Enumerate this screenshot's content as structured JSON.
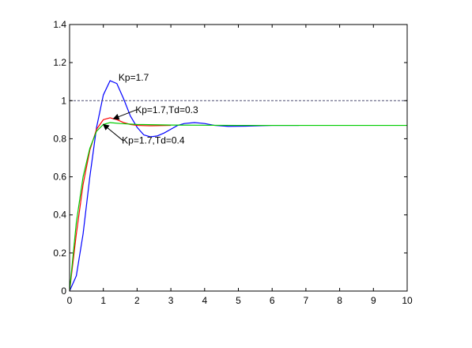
{
  "chart_data": {
    "type": "line",
    "title": "",
    "xlabel": "",
    "ylabel": "",
    "xlim": [
      0,
      10
    ],
    "ylim": [
      0,
      1.4
    ],
    "x_ticks": [
      "0",
      "1",
      "2",
      "3",
      "4",
      "5",
      "6",
      "7",
      "8",
      "9",
      "10"
    ],
    "y_ticks": [
      "0",
      "0.2",
      "0.4",
      "0.6",
      "0.8",
      "1",
      "1.2",
      "1.4"
    ],
    "grid": false,
    "legend": "none",
    "series": [
      {
        "color": "#0000ff",
        "points": [
          [
            0,
            0
          ],
          [
            0.2,
            0.08
          ],
          [
            0.4,
            0.3
          ],
          [
            0.6,
            0.6
          ],
          [
            0.8,
            0.86
          ],
          [
            1.0,
            1.03
          ],
          [
            1.2,
            1.105
          ],
          [
            1.4,
            1.09
          ],
          [
            1.6,
            1.01
          ],
          [
            1.8,
            0.92
          ],
          [
            2.0,
            0.86
          ],
          [
            2.2,
            0.82
          ],
          [
            2.4,
            0.81
          ],
          [
            2.6,
            0.815
          ],
          [
            2.8,
            0.83
          ],
          [
            3.0,
            0.85
          ],
          [
            3.2,
            0.87
          ],
          [
            3.4,
            0.88
          ],
          [
            3.7,
            0.885
          ],
          [
            4.0,
            0.88
          ],
          [
            4.3,
            0.87
          ],
          [
            4.7,
            0.865
          ],
          [
            5.2,
            0.866
          ],
          [
            6.0,
            0.87
          ],
          [
            6.8,
            0.87
          ]
        ]
      },
      {
        "color": "#ff0000",
        "points": [
          [
            0,
            0
          ],
          [
            0.2,
            0.3
          ],
          [
            0.4,
            0.56
          ],
          [
            0.6,
            0.74
          ],
          [
            0.8,
            0.85
          ],
          [
            1.0,
            0.9
          ],
          [
            1.2,
            0.91
          ],
          [
            1.4,
            0.9
          ],
          [
            1.6,
            0.885
          ],
          [
            1.8,
            0.875
          ],
          [
            2.0,
            0.87
          ],
          [
            2.4,
            0.868
          ],
          [
            3.0,
            0.87
          ]
        ]
      },
      {
        "color": "#00cc00",
        "points": [
          [
            0,
            0
          ],
          [
            0.2,
            0.36
          ],
          [
            0.4,
            0.6
          ],
          [
            0.6,
            0.75
          ],
          [
            0.8,
            0.84
          ],
          [
            1.0,
            0.875
          ],
          [
            1.2,
            0.885
          ],
          [
            1.5,
            0.88
          ],
          [
            2.0,
            0.875
          ],
          [
            3.0,
            0.872
          ],
          [
            5.0,
            0.87
          ],
          [
            7.0,
            0.87
          ],
          [
            10.0,
            0.87
          ]
        ]
      },
      {
        "color": "#606080",
        "dashed": true,
        "points": [
          [
            0,
            1
          ],
          [
            10,
            1
          ]
        ]
      }
    ],
    "annotations": [
      {
        "text": "Kp=1.7",
        "x": 1.45,
        "y": 1.105,
        "arrow_to": null
      },
      {
        "text": "Kp=1.7,Td=0.3",
        "x": 1.95,
        "y": 0.935,
        "arrow_to": [
          1.3,
          0.905
        ]
      },
      {
        "text": "Kp=1.7,Td=0.4",
        "x": 1.55,
        "y": 0.775,
        "arrow_to": [
          1.0,
          0.875
        ]
      }
    ]
  }
}
